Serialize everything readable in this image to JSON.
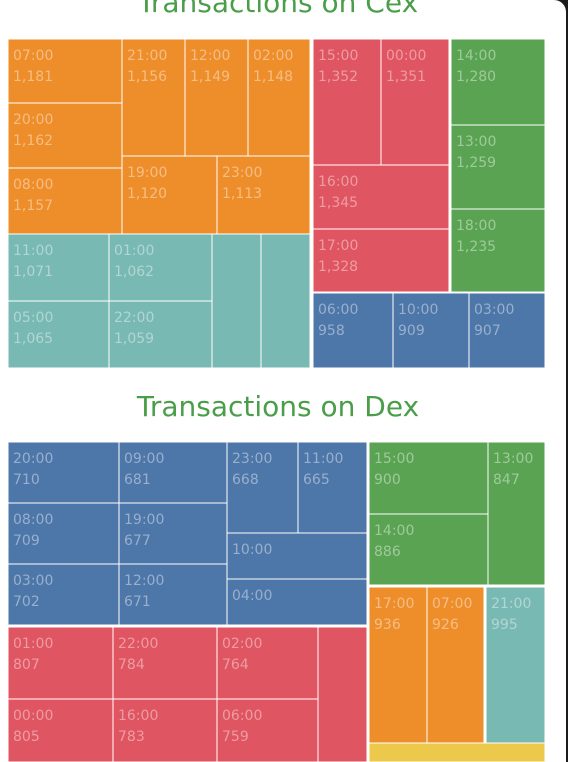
{
  "colors": {
    "orange": "#ee8e2b",
    "red": "#e05562",
    "green": "#5aa352",
    "teal": "#78b9b3",
    "blue": "#4d76a9",
    "yellow": "#ecc94b"
  },
  "chart_data": [
    {
      "type": "treemap",
      "title": "Transactions on Cex",
      "groups": [
        {
          "color": "orange",
          "items": [
            {
              "label": "07:00",
              "value": "1,181"
            },
            {
              "label": "21:00",
              "value": "1,156"
            },
            {
              "label": "12:00",
              "value": "1,149"
            },
            {
              "label": "02:00",
              "value": "1,148"
            },
            {
              "label": "20:00",
              "value": "1,162"
            },
            {
              "label": "08:00",
              "value": "1,157"
            },
            {
              "label": "19:00",
              "value": "1,120"
            },
            {
              "label": "23:00",
              "value": "1,113"
            }
          ]
        },
        {
          "color": "red",
          "items": [
            {
              "label": "15:00",
              "value": "1,352"
            },
            {
              "label": "00:00",
              "value": "1,351"
            },
            {
              "label": "16:00",
              "value": "1,345"
            },
            {
              "label": "17:00",
              "value": "1,328"
            }
          ]
        },
        {
          "color": "green",
          "items": [
            {
              "label": "14:00",
              "value": "1,280"
            },
            {
              "label": "13:00",
              "value": "1,259"
            },
            {
              "label": "18:00",
              "value": "1,235"
            }
          ]
        },
        {
          "color": "teal",
          "items": [
            {
              "label": "11:00",
              "value": "1,071"
            },
            {
              "label": "01:00",
              "value": "1,062"
            },
            {
              "label": "05:00",
              "value": "1,065"
            },
            {
              "label": "22:00",
              "value": "1,059"
            },
            {
              "label": "",
              "value": ""
            },
            {
              "label": "",
              "value": ""
            }
          ]
        },
        {
          "color": "blue",
          "items": [
            {
              "label": "06:00",
              "value": "958"
            },
            {
              "label": "10:00",
              "value": "909"
            },
            {
              "label": "03:00",
              "value": "907"
            }
          ]
        }
      ]
    },
    {
      "type": "treemap",
      "title": "Transactions on Dex",
      "groups": [
        {
          "color": "blue",
          "items": [
            {
              "label": "20:00",
              "value": "710"
            },
            {
              "label": "09:00",
              "value": "681"
            },
            {
              "label": "23:00",
              "value": "668"
            },
            {
              "label": "11:00",
              "value": "665"
            },
            {
              "label": "08:00",
              "value": "709"
            },
            {
              "label": "19:00",
              "value": "677"
            },
            {
              "label": "10:00",
              "value": ""
            },
            {
              "label": "03:00",
              "value": "702"
            },
            {
              "label": "12:00",
              "value": "671"
            },
            {
              "label": "04:00",
              "value": ""
            }
          ]
        },
        {
          "color": "green",
          "items": [
            {
              "label": "15:00",
              "value": "900"
            },
            {
              "label": "13:00",
              "value": "847"
            },
            {
              "label": "14:00",
              "value": "886"
            }
          ]
        },
        {
          "color": "red",
          "items": [
            {
              "label": "01:00",
              "value": "807"
            },
            {
              "label": "22:00",
              "value": "784"
            },
            {
              "label": "02:00",
              "value": "764"
            },
            {
              "label": "00:00",
              "value": "805"
            },
            {
              "label": "16:00",
              "value": "783"
            },
            {
              "label": "06:00",
              "value": "759"
            },
            {
              "label": "",
              "value": ""
            }
          ]
        },
        {
          "color": "orange",
          "items": [
            {
              "label": "17:00",
              "value": "936"
            },
            {
              "label": "07:00",
              "value": "926"
            }
          ]
        },
        {
          "color": "teal",
          "items": [
            {
              "label": "21:00",
              "value": "995"
            }
          ]
        },
        {
          "color": "yellow",
          "items": [
            {
              "label": "",
              "value": ""
            }
          ]
        }
      ]
    }
  ]
}
